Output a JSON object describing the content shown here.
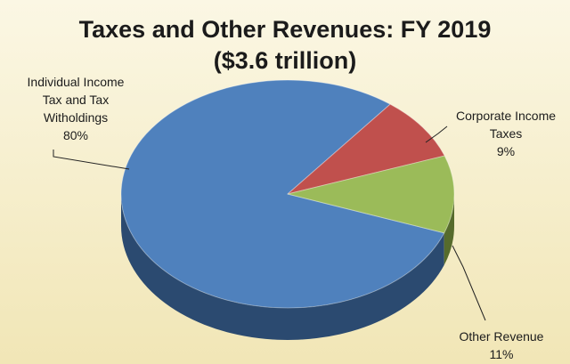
{
  "chart_data": {
    "type": "pie",
    "title": "Taxes and Other Revenues: FY 2019",
    "subtitle": "($3.6 trillion)",
    "slices": [
      {
        "label_lines": [
          "Individual Income",
          "Tax and Tax",
          "Witholdings"
        ],
        "value_label": "80%",
        "value": 80,
        "color": "#4f81bd",
        "side": "#2b4a70"
      },
      {
        "label_lines": [
          "Corporate Income",
          "Taxes"
        ],
        "value_label": "9%",
        "value": 9,
        "color": "#c0504d",
        "side": "#7a2e2c"
      },
      {
        "label_lines": [
          "Other Revenue"
        ],
        "value_label": "11%",
        "value": 11,
        "color": "#9bbb59",
        "side": "#566b2c"
      }
    ]
  }
}
